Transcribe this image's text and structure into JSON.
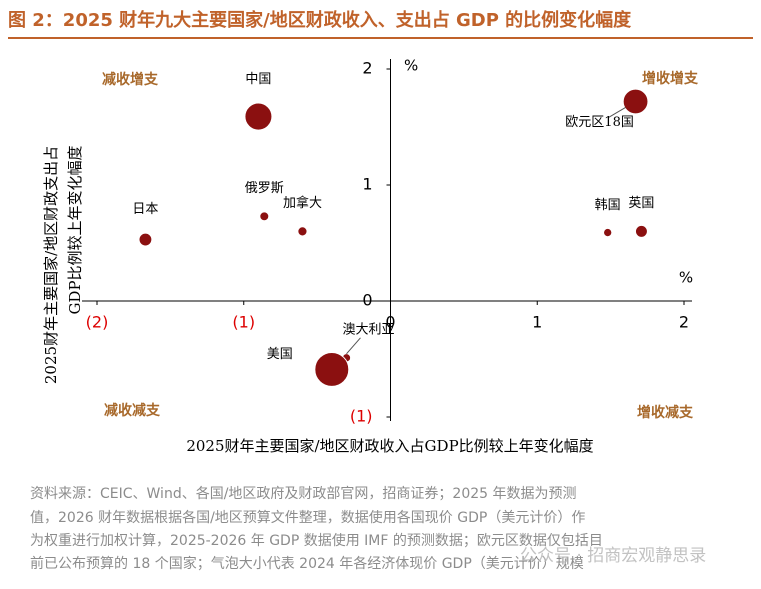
{
  "chart_data": {
    "type": "bubble",
    "title": "图 2：2025 财年九大主要国家/地区财政收入、支出占 GDP 的比例变化幅度",
    "xlabel": "2025财年主要国家/地区财政收入占GDP比例较上年变化幅度",
    "ylabel_lines": [
      "2025财年主要国家/地区财政支出占",
      "GDP比例较上年变化幅度"
    ],
    "xunit": "%",
    "yunit": "%",
    "quadrants": {
      "top_left": "减收增支",
      "top_right": "增收增支",
      "bottom_left": "减收减支",
      "bottom_right": "增收减支"
    },
    "color": "#8b1010",
    "points": [
      {
        "name": "中国",
        "x": -0.9,
        "y": 1.59,
        "size": 19
      },
      {
        "name": "欧元区18国",
        "x": 1.67,
        "y": 1.72,
        "size": 16
      },
      {
        "name": "日本",
        "x": -1.67,
        "y": 0.53,
        "size": 4.3
      },
      {
        "name": "俄罗斯",
        "x": -0.86,
        "y": 0.73,
        "size": 2.1
      },
      {
        "name": "加拿大",
        "x": -0.6,
        "y": 0.6,
        "size": 2.2
      },
      {
        "name": "韩国",
        "x": 1.48,
        "y": 0.59,
        "size": 1.8
      },
      {
        "name": "英国",
        "x": 1.71,
        "y": 0.6,
        "size": 3.7
      },
      {
        "name": "澳大利亚",
        "x": -0.3,
        "y": -0.49,
        "size": 1.8
      },
      {
        "name": "美国",
        "x": -0.4,
        "y": -0.59,
        "size": 30
      }
    ],
    "xlim": [
      -2,
      2
    ],
    "ylim": [
      -1,
      2
    ],
    "xticks": [
      {
        "value": -2,
        "label": "(2)"
      },
      {
        "value": -1,
        "label": "(1)"
      },
      0,
      1,
      2
    ],
    "yticks": [
      {
        "value": -1,
        "label": "(1)"
      },
      0,
      1,
      2
    ]
  },
  "source_lines": [
    "资料来源：CEIC、Wind、各国/地区政府及财政部官网，招商证券；2025 年数据为预测",
    "值，2026 财年数据根据各国/地区预算文件整理，数据使用各国现价 GDP（美元计价）作",
    "为权重进行加权计算，2025-2026 年 GDP 数据使用 IMF 的预测数据；欧元区数据仅包括目",
    "前已公布预算的 18 个国家；气泡大小代表 2024 年各经济体现价 GDP（美元计价）规模"
  ],
  "watermark": "公众号 · 招商宏观静思录"
}
